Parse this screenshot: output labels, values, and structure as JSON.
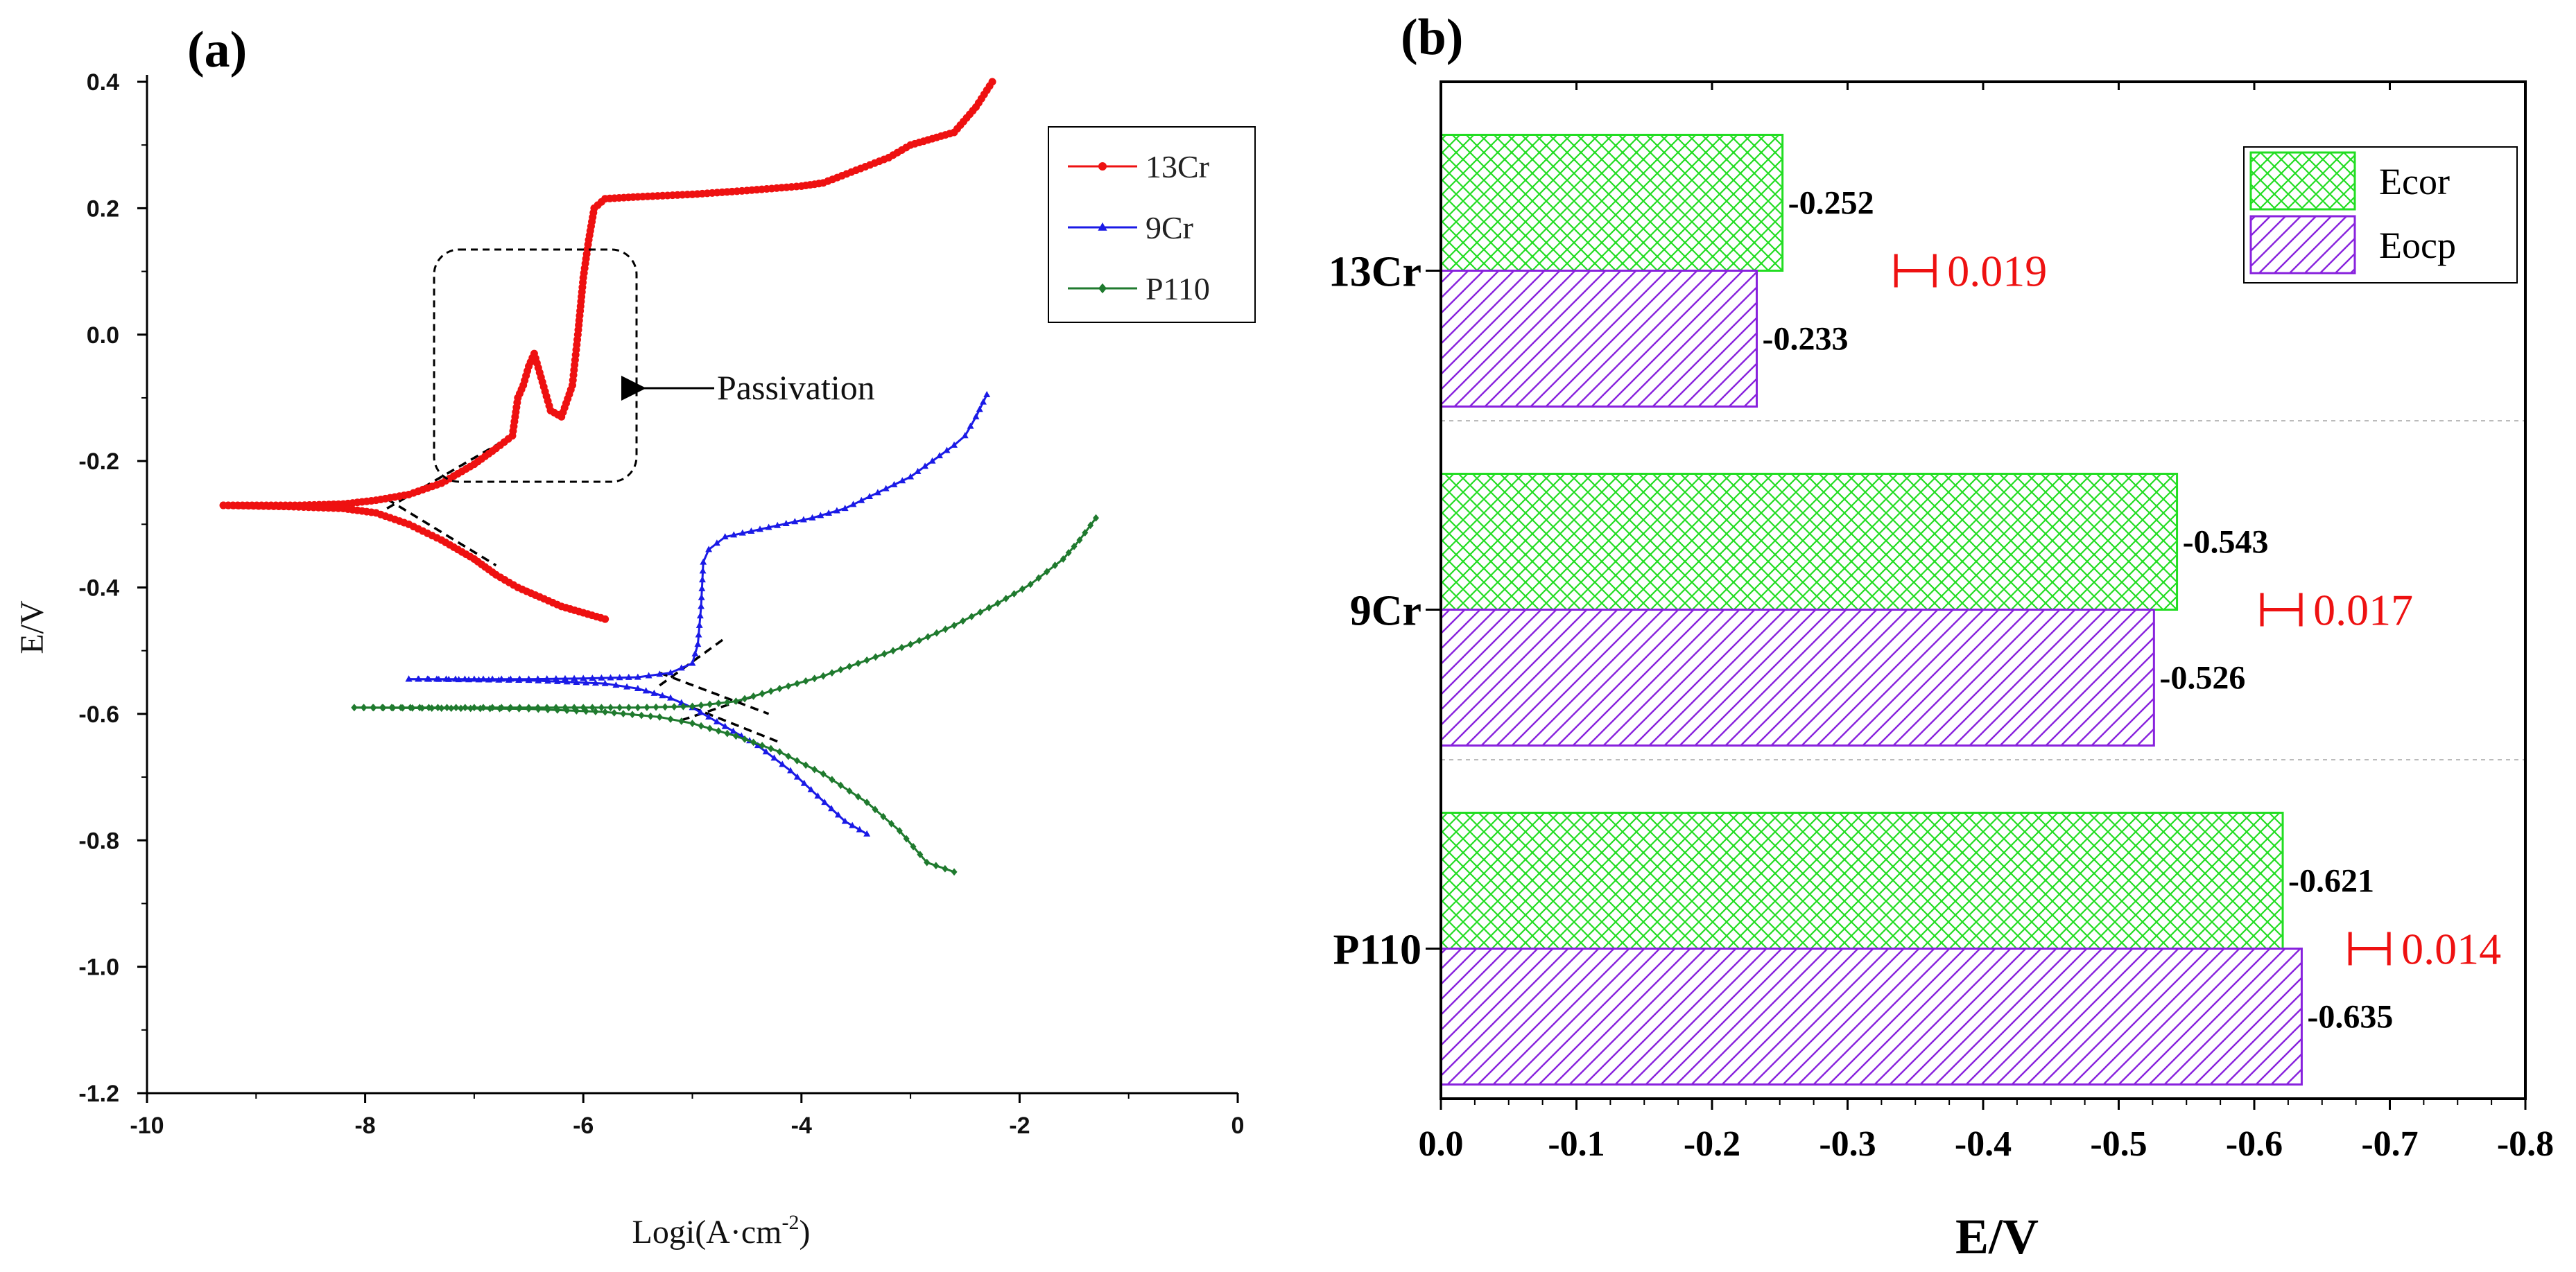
{
  "chart_data": [
    {
      "type": "line",
      "panel_label": "(a)",
      "title": "",
      "xlabel_main": "Logi(A·cm",
      "xlabel_sup": "-2",
      "xlabel_close": ")",
      "ylabel": "E/V",
      "xlim": [
        -10,
        0
      ],
      "ylim": [
        -1.2,
        0.4
      ],
      "x_tick_values": [
        -10,
        -8,
        -6,
        -4,
        -2,
        0
      ],
      "x_tick_labels": [
        "-10",
        "-8",
        "-6",
        "-4",
        "-2",
        "0"
      ],
      "y_tick_values": [
        0.4,
        0.2,
        0.0,
        -0.2,
        -0.4,
        -0.6,
        -0.8,
        -1.0,
        -1.2
      ],
      "y_tick_labels": [
        "0.4",
        "0.2",
        "0.0",
        "-0.2",
        "-0.4",
        "-0.6",
        "-0.8",
        "-1.0",
        "-1.2"
      ],
      "legend_position": "top-right",
      "annotation": "Passivation",
      "series": [
        {
          "name": "13Cr",
          "color": "#ee1111",
          "marker": "circle",
          "anodic": [
            [
              -9.3,
              -0.27
            ],
            [
              -8.6,
              -0.27
            ],
            [
              -8.2,
              -0.268
            ],
            [
              -7.9,
              -0.262
            ],
            [
              -7.6,
              -0.253
            ],
            [
              -7.3,
              -0.235
            ],
            [
              -7.0,
              -0.205
            ],
            [
              -6.8,
              -0.18
            ],
            [
              -6.65,
              -0.16
            ],
            [
              -6.6,
              -0.1
            ],
            [
              -6.55,
              -0.08
            ],
            [
              -6.5,
              -0.05
            ],
            [
              -6.45,
              -0.03
            ],
            [
              -6.4,
              -0.06
            ],
            [
              -6.35,
              -0.09
            ],
            [
              -6.3,
              -0.12
            ],
            [
              -6.2,
              -0.13
            ],
            [
              -6.1,
              -0.08
            ],
            [
              -6.05,
              0.0
            ],
            [
              -6.0,
              0.09
            ],
            [
              -5.95,
              0.15
            ],
            [
              -5.9,
              0.2
            ],
            [
              -5.8,
              0.215
            ],
            [
              -5.5,
              0.218
            ],
            [
              -5.0,
              0.222
            ],
            [
              -4.5,
              0.228
            ],
            [
              -4.0,
              0.235
            ],
            [
              -3.8,
              0.24
            ],
            [
              -3.5,
              0.26
            ],
            [
              -3.2,
              0.28
            ],
            [
              -3.0,
              0.3
            ],
            [
              -2.8,
              0.31
            ],
            [
              -2.6,
              0.32
            ],
            [
              -2.4,
              0.36
            ],
            [
              -2.25,
              0.4
            ]
          ],
          "cathodic": [
            [
              -9.3,
              -0.27
            ],
            [
              -8.7,
              -0.272
            ],
            [
              -8.2,
              -0.275
            ],
            [
              -7.9,
              -0.282
            ],
            [
              -7.6,
              -0.3
            ],
            [
              -7.3,
              -0.325
            ],
            [
              -7.0,
              -0.355
            ],
            [
              -6.8,
              -0.38
            ],
            [
              -6.6,
              -0.4
            ],
            [
              -6.4,
              -0.415
            ],
            [
              -6.2,
              -0.43
            ],
            [
              -6.0,
              -0.44
            ],
            [
              -5.8,
              -0.45
            ]
          ]
        },
        {
          "name": "9Cr",
          "color": "#1a1ae6",
          "marker": "triangle",
          "anodic": [
            [
              -7.6,
              -0.545
            ],
            [
              -7.0,
              -0.545
            ],
            [
              -6.5,
              -0.545
            ],
            [
              -6.0,
              -0.544
            ],
            [
              -5.5,
              -0.542
            ],
            [
              -5.2,
              -0.535
            ],
            [
              -5.0,
              -0.52
            ],
            [
              -4.95,
              -0.49
            ],
            [
              -4.92,
              -0.43
            ],
            [
              -4.9,
              -0.36
            ],
            [
              -4.85,
              -0.34
            ],
            [
              -4.7,
              -0.32
            ],
            [
              -4.3,
              -0.305
            ],
            [
              -3.9,
              -0.29
            ],
            [
              -3.6,
              -0.275
            ],
            [
              -3.3,
              -0.25
            ],
            [
              -3.0,
              -0.225
            ],
            [
              -2.8,
              -0.2
            ],
            [
              -2.6,
              -0.175
            ],
            [
              -2.5,
              -0.16
            ],
            [
              -2.4,
              -0.13
            ],
            [
              -2.3,
              -0.095
            ]
          ],
          "cathodic": [
            [
              -7.6,
              -0.545
            ],
            [
              -6.5,
              -0.547
            ],
            [
              -5.8,
              -0.552
            ],
            [
              -5.5,
              -0.56
            ],
            [
              -5.2,
              -0.575
            ],
            [
              -5.0,
              -0.59
            ],
            [
              -4.7,
              -0.62
            ],
            [
              -4.4,
              -0.65
            ],
            [
              -4.1,
              -0.69
            ],
            [
              -3.85,
              -0.73
            ],
            [
              -3.6,
              -0.77
            ],
            [
              -3.4,
              -0.79
            ]
          ]
        },
        {
          "name": "P110",
          "color": "#1f7a2e",
          "marker": "diamond",
          "anodic": [
            [
              -8.1,
              -0.59
            ],
            [
              -7.5,
              -0.59
            ],
            [
              -7.0,
              -0.59
            ],
            [
              -6.5,
              -0.59
            ],
            [
              -6.0,
              -0.59
            ],
            [
              -5.5,
              -0.59
            ],
            [
              -5.0,
              -0.588
            ],
            [
              -4.6,
              -0.58
            ],
            [
              -4.2,
              -0.56
            ],
            [
              -3.8,
              -0.54
            ],
            [
              -3.4,
              -0.515
            ],
            [
              -3.0,
              -0.49
            ],
            [
              -2.6,
              -0.46
            ],
            [
              -2.2,
              -0.425
            ],
            [
              -1.9,
              -0.395
            ],
            [
              -1.6,
              -0.355
            ],
            [
              -1.45,
              -0.325
            ],
            [
              -1.3,
              -0.29
            ]
          ],
          "cathodic": [
            [
              -8.1,
              -0.59
            ],
            [
              -6.5,
              -0.592
            ],
            [
              -5.8,
              -0.597
            ],
            [
              -5.3,
              -0.605
            ],
            [
              -5.0,
              -0.615
            ],
            [
              -4.6,
              -0.635
            ],
            [
              -4.2,
              -0.66
            ],
            [
              -3.8,
              -0.695
            ],
            [
              -3.4,
              -0.74
            ],
            [
              -3.1,
              -0.785
            ],
            [
              -2.85,
              -0.835
            ],
            [
              -2.6,
              -0.85
            ]
          ]
        }
      ],
      "tafel_lines": [
        [
          [
            -7.8,
            -0.275
          ],
          [
            -6.75,
            -0.17
          ]
        ],
        [
          [
            -7.8,
            -0.26
          ],
          [
            -6.8,
            -0.365
          ]
        ],
        [
          [
            -5.3,
            -0.555
          ],
          [
            -4.7,
            -0.48
          ]
        ],
        [
          [
            -5.3,
            -0.535
          ],
          [
            -4.3,
            -0.6
          ]
        ],
        [
          [
            -5.1,
            -0.61
          ],
          [
            -4.4,
            -0.57
          ]
        ],
        [
          [
            -5.0,
            -0.59
          ],
          [
            -4.2,
            -0.645
          ]
        ]
      ]
    },
    {
      "type": "bar",
      "orientation": "horizontal",
      "panel_label": "(b)",
      "xlabel": "E/V",
      "ylabel": "",
      "xlim": [
        0,
        -0.8
      ],
      "x_tick_values": [
        0.0,
        -0.1,
        -0.2,
        -0.3,
        -0.4,
        -0.5,
        -0.6,
        -0.7,
        -0.8
      ],
      "x_tick_labels": [
        "0.0",
        "-0.1",
        "-0.2",
        "-0.3",
        "-0.4",
        "-0.5",
        "-0.6",
        "-0.7",
        "-0.8"
      ],
      "categories": [
        "13Cr",
        "9Cr",
        "P110"
      ],
      "legend_position": "top-right",
      "series": [
        {
          "name": "Ecor",
          "pattern": "cross-hatch",
          "color": "#22dd22",
          "values": [
            -0.252,
            -0.543,
            -0.621
          ],
          "labels": [
            "-0.252",
            "-0.543",
            "-0.621"
          ]
        },
        {
          "name": "Eocp",
          "pattern": "diagonal-hatch",
          "color": "#8822dd",
          "values": [
            -0.233,
            -0.526,
            -0.635
          ],
          "labels": [
            "-0.233",
            "-0.526",
            "-0.635"
          ]
        }
      ],
      "differences": [
        {
          "category": "13Cr",
          "value": 0.019,
          "label": "0.019",
          "position": -0.35
        },
        {
          "category": "9Cr",
          "value": 0.017,
          "label": "0.017",
          "position": -0.62
        },
        {
          "category": "P110",
          "value": 0.014,
          "label": "0.014",
          "position": -0.685
        }
      ],
      "difference_color": "#ee1111"
    }
  ]
}
